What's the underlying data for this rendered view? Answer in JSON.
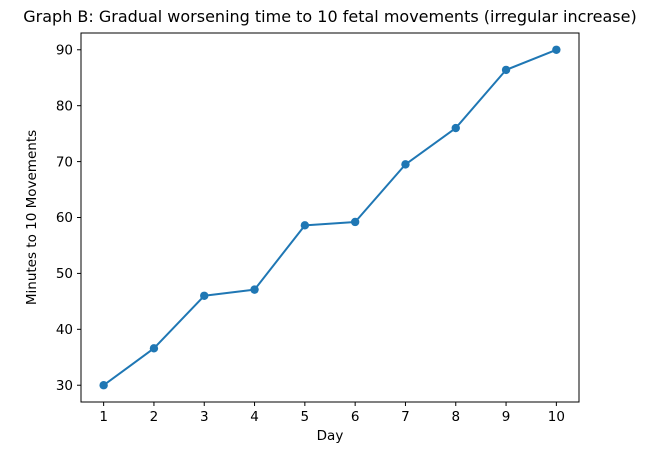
{
  "chart_data": {
    "type": "line",
    "title": "Graph B: Gradual worsening time to 10 fetal movements (irregular increase)",
    "xlabel": "Day",
    "ylabel": "Minutes to 10 Movements",
    "x": [
      1,
      2,
      3,
      4,
      5,
      6,
      7,
      8,
      9,
      10
    ],
    "series": [
      {
        "name": "Minutes to 10 Movements",
        "values": [
          30,
          36.6,
          46,
          47.1,
          58.6,
          59.2,
          69.5,
          76,
          86.4,
          90
        ]
      }
    ],
    "xticks": [
      1,
      2,
      3,
      4,
      5,
      6,
      7,
      8,
      9,
      10
    ],
    "yticks": [
      30,
      40,
      50,
      60,
      70,
      80,
      90
    ],
    "xlim": [
      0.55,
      10.45
    ],
    "ylim": [
      27,
      93
    ],
    "grid": false,
    "legend": "none",
    "line_color": "#1f77b4",
    "marker": "circle",
    "background_color": "#ffffff",
    "spine_color": "#000000"
  }
}
